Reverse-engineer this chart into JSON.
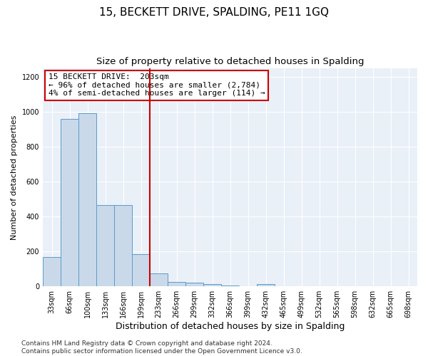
{
  "title": "15, BECKETT DRIVE, SPALDING, PE11 1GQ",
  "subtitle": "Size of property relative to detached houses in Spalding",
  "xlabel": "Distribution of detached houses by size in Spalding",
  "ylabel": "Number of detached properties",
  "categories": [
    "33sqm",
    "66sqm",
    "100sqm",
    "133sqm",
    "166sqm",
    "199sqm",
    "233sqm",
    "266sqm",
    "299sqm",
    "332sqm",
    "366sqm",
    "399sqm",
    "432sqm",
    "465sqm",
    "499sqm",
    "532sqm",
    "565sqm",
    "598sqm",
    "632sqm",
    "665sqm",
    "698sqm"
  ],
  "values": [
    170,
    960,
    990,
    465,
    465,
    185,
    75,
    25,
    20,
    13,
    5,
    0,
    13,
    0,
    0,
    0,
    0,
    0,
    0,
    0,
    0
  ],
  "bar_color": "#c9d9ea",
  "bar_edge_color": "#5b9bc8",
  "vline_color": "#cc0000",
  "annotation_text": "15 BECKETT DRIVE:  203sqm\n← 96% of detached houses are smaller (2,784)\n4% of semi-detached houses are larger (114) →",
  "annotation_box_color": "#ffffff",
  "annotation_box_edge": "#cc0000",
  "ylim": [
    0,
    1250
  ],
  "yticks": [
    0,
    200,
    400,
    600,
    800,
    1000,
    1200
  ],
  "bg_color": "#eaf0f8",
  "footer": "Contains HM Land Registry data © Crown copyright and database right 2024.\nContains public sector information licensed under the Open Government Licence v3.0.",
  "title_fontsize": 11,
  "subtitle_fontsize": 9.5,
  "xlabel_fontsize": 9,
  "ylabel_fontsize": 8,
  "tick_fontsize": 7,
  "annotation_fontsize": 8,
  "footer_fontsize": 6.5
}
